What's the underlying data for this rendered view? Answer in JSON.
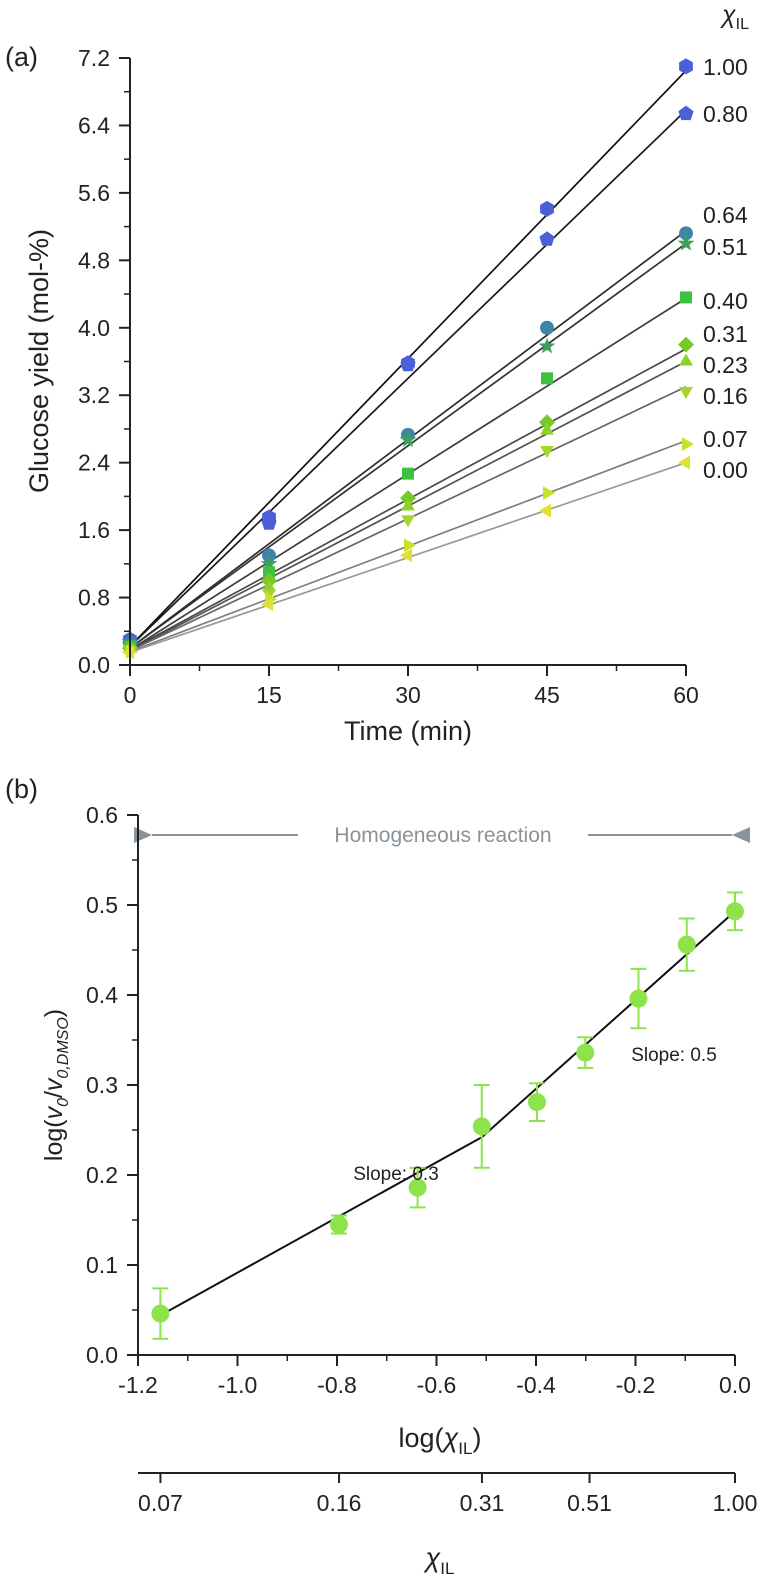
{
  "chart_data": [
    {
      "panel": "(a)",
      "type": "line",
      "xlabel": "Time (min)",
      "ylabel": "Glucose yield (mol-%)",
      "legend_title": "χIL",
      "xlim": [
        0,
        60
      ],
      "ylim": [
        0,
        7.2
      ],
      "xticks": [
        "0",
        "15",
        "30",
        "45",
        "60"
      ],
      "yticks": [
        "0.0",
        "0.8",
        "1.6",
        "2.4",
        "3.2",
        "4.0",
        "4.8",
        "5.6",
        "6.4",
        "7.2"
      ],
      "series": [
        {
          "name": "1.00",
          "marker": "hexagon",
          "color": "#4a5fd8",
          "line": "#111111",
          "x": [
            0,
            15,
            30,
            45,
            60
          ],
          "y": [
            0.3,
            1.75,
            3.58,
            5.41,
            7.1
          ],
          "fit": [
            0.22,
            7.05
          ]
        },
        {
          "name": "0.80",
          "marker": "pentagon",
          "color": "#4a5fd8",
          "line": "#1a1a1a",
          "x": [
            0,
            15,
            30,
            45,
            60
          ],
          "y": [
            0.28,
            1.68,
            3.56,
            5.05,
            6.54
          ],
          "fit": [
            0.22,
            6.58
          ]
        },
        {
          "name": "0.64",
          "marker": "circle",
          "color": "#3d86a8",
          "line": "#2c2c2c",
          "x": [
            0,
            15,
            30,
            45,
            60
          ],
          "y": [
            0.26,
            1.3,
            2.73,
            4.0,
            5.12
          ],
          "fit": [
            0.2,
            5.15
          ]
        },
        {
          "name": "0.51",
          "marker": "star",
          "color": "#3fa05a",
          "line": "#333333",
          "x": [
            0,
            15,
            30,
            45,
            60
          ],
          "y": [
            0.24,
            1.2,
            2.67,
            3.78,
            5.0
          ],
          "fit": [
            0.2,
            5.0
          ]
        },
        {
          "name": "0.40",
          "marker": "square",
          "color": "#3fc03f",
          "line": "#3d3d3d",
          "x": [
            0,
            15,
            30,
            45,
            60
          ],
          "y": [
            0.22,
            1.1,
            2.27,
            3.4,
            4.36
          ],
          "fit": [
            0.18,
            4.35
          ]
        },
        {
          "name": "0.31",
          "marker": "diamond",
          "color": "#78c82a",
          "line": "#474747",
          "x": [
            0,
            15,
            30,
            45,
            60
          ],
          "y": [
            0.2,
            1.0,
            1.98,
            2.88,
            3.8
          ],
          "fit": [
            0.18,
            3.75
          ]
        },
        {
          "name": "0.23",
          "marker": "triangle-up",
          "color": "#8fd02a",
          "line": "#525252",
          "x": [
            0,
            15,
            30,
            45,
            60
          ],
          "y": [
            0.19,
            0.92,
            1.88,
            2.78,
            3.6
          ],
          "fit": [
            0.17,
            3.6
          ]
        },
        {
          "name": "0.16",
          "marker": "triangle-down",
          "color": "#a6d62a",
          "line": "#666666",
          "x": [
            0,
            15,
            30,
            45,
            60
          ],
          "y": [
            0.18,
            0.85,
            1.73,
            2.55,
            3.25
          ],
          "fit": [
            0.17,
            3.3
          ]
        },
        {
          "name": "0.07",
          "marker": "triangle-right",
          "color": "#cce028",
          "line": "#7d7d7d",
          "x": [
            0,
            15,
            30,
            45,
            60
          ],
          "y": [
            0.16,
            0.78,
            1.42,
            2.04,
            2.62
          ],
          "fit": [
            0.16,
            2.66
          ]
        },
        {
          "name": "0.00",
          "marker": "triangle-left",
          "color": "#e0e030",
          "line": "#999999",
          "x": [
            0,
            15,
            30,
            45,
            60
          ],
          "y": [
            0.15,
            0.72,
            1.3,
            1.83,
            2.4
          ],
          "fit": [
            0.15,
            2.4
          ]
        }
      ]
    },
    {
      "panel": "(b)",
      "type": "scatter",
      "xlabel": "log(χIL)",
      "ylabel": "log(v0/v0,DMSO)",
      "xlim": [
        -1.2,
        0.0
      ],
      "ylim": [
        0.0,
        0.6
      ],
      "xticks": [
        "-1.2",
        "-1.0",
        "-0.8",
        "-0.6",
        "-0.4",
        "-0.2",
        "0.0"
      ],
      "yticks": [
        "0.0",
        "0.1",
        "0.2",
        "0.3",
        "0.4",
        "0.5",
        "0.6"
      ],
      "color": "#8ee34a",
      "points": [
        {
          "x": -1.155,
          "y": 0.046,
          "err": 0.028
        },
        {
          "x": -0.796,
          "y": 0.145,
          "err": 0.01
        },
        {
          "x": -0.638,
          "y": 0.186,
          "err": 0.022
        },
        {
          "x": -0.509,
          "y": 0.254,
          "err": 0.046
        },
        {
          "x": -0.398,
          "y": 0.281,
          "err": 0.021
        },
        {
          "x": -0.301,
          "y": 0.336,
          "err": 0.017
        },
        {
          "x": -0.194,
          "y": 0.396,
          "err": 0.033
        },
        {
          "x": -0.097,
          "y": 0.456,
          "err": 0.029
        },
        {
          "x": 0.0,
          "y": 0.493,
          "err": 0.021
        }
      ],
      "fit_segments": [
        {
          "x": [
            -1.155,
            -0.509
          ],
          "y": [
            0.044,
            0.242
          ]
        },
        {
          "x": [
            -0.509,
            0.0
          ],
          "y": [
            0.242,
            0.493
          ]
        }
      ],
      "annotations": {
        "slope_low": "Slope: 0.3",
        "slope_high": "Slope: 0.5",
        "range": "Homogeneous reaction"
      },
      "secondary_axis": {
        "label": "χIL",
        "ticks": [
          {
            "label": "0.07",
            "value": 0.07
          },
          {
            "label": "0.16",
            "value": 0.16
          },
          {
            "label": "0.31",
            "value": 0.31
          },
          {
            "label": "0.51",
            "value": 0.51
          },
          {
            "label": "1.00",
            "value": 1.0
          }
        ]
      }
    }
  ]
}
